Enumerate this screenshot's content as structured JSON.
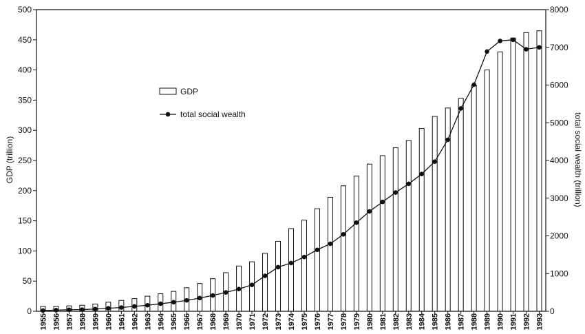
{
  "chart_data": {
    "type": "bar+line",
    "categories": [
      "1955",
      "1956",
      "1957",
      "1958",
      "1959",
      "1960",
      "1961",
      "1962",
      "1963",
      "1964",
      "1965",
      "1966",
      "1967",
      "1968",
      "1969",
      "1970",
      "1971",
      "1972",
      "1973",
      "1974",
      "1975",
      "1976",
      "1977",
      "1978",
      "1979",
      "1980",
      "1981",
      "1982",
      "1983",
      "1984",
      "1985",
      "1986",
      "1987",
      "1988",
      "1989",
      "1990",
      "1991",
      "1992",
      "1993"
    ],
    "series": [
      {
        "name": "GDP",
        "kind": "bar",
        "axis": "left",
        "values": [
          8,
          8,
          9,
          10,
          12,
          15,
          18,
          21,
          25,
          29,
          33,
          39,
          46,
          54,
          64,
          75,
          82,
          96,
          116,
          137,
          151,
          170,
          189,
          208,
          224,
          244,
          258,
          271,
          283,
          303,
          323,
          337,
          353,
          375,
          400,
          430,
          453,
          462,
          465
        ]
      },
      {
        "name": "total social wealth",
        "kind": "line",
        "axis": "right",
        "values": [
          20,
          30,
          40,
          45,
          60,
          80,
          100,
          130,
          160,
          200,
          240,
          290,
          350,
          420,
          500,
          590,
          700,
          940,
          1170,
          1280,
          1440,
          1630,
          1790,
          2040,
          2350,
          2650,
          2900,
          3150,
          3380,
          3640,
          3970,
          4550,
          5380,
          6010,
          6890,
          7170,
          7200,
          6950,
          7000
        ]
      }
    ],
    "ylabel": "GDP (trillion)",
    "ylabel_right": "total social wealth (trillion)",
    "ylim": [
      0,
      500
    ],
    "ylim_right": [
      0,
      8000
    ],
    "yticks": [
      0,
      50,
      100,
      150,
      200,
      250,
      300,
      350,
      400,
      450,
      500
    ],
    "yticks_right": [
      0,
      1000,
      2000,
      3000,
      4000,
      5000,
      6000,
      7000,
      8000
    ],
    "grid": false,
    "legend_position": "upper-left-center",
    "colors": {
      "bar_fill": "#ffffff",
      "stroke": "#111111",
      "line": "#111111"
    }
  }
}
